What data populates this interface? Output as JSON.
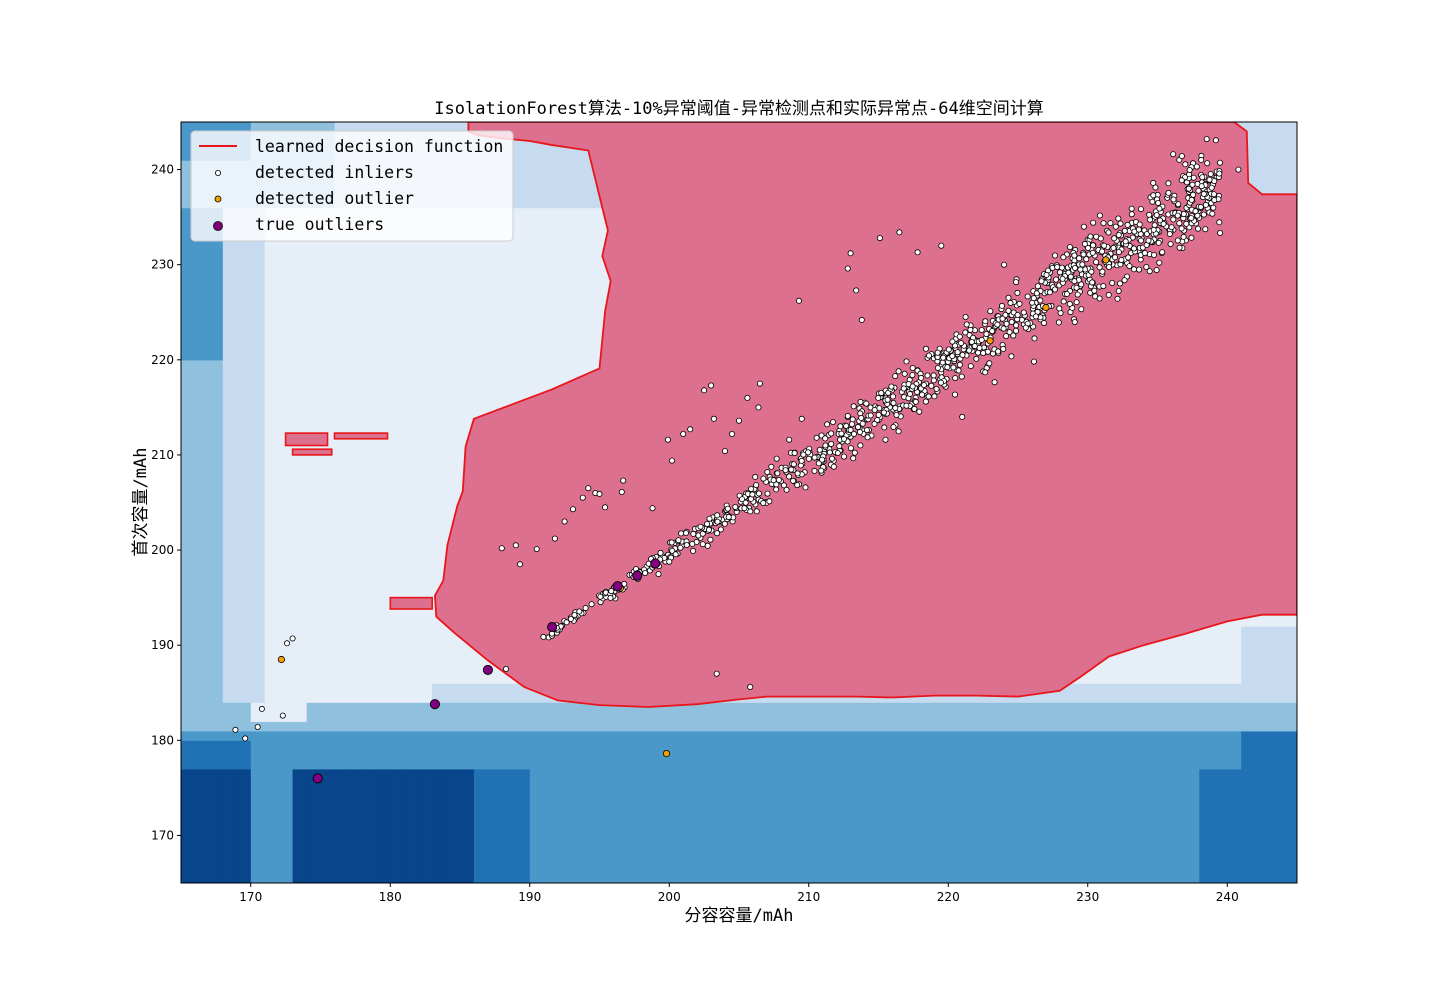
{
  "chart_data": {
    "type": "scatter",
    "title": "IsolationForest算法-10%异常阈值-异常检测点和实际异常点-64维空间计算",
    "xlabel": "分容容量/mAh",
    "ylabel": "首次容量/mAh",
    "xlim": [
      165,
      245
    ],
    "ylim": [
      165,
      245
    ],
    "xticks": [
      170,
      180,
      190,
      200,
      210,
      220,
      230,
      240
    ],
    "yticks": [
      170,
      180,
      190,
      200,
      210,
      220,
      230,
      240
    ],
    "legend_position": "upper-left",
    "colors": {
      "decision_line": "#e8161a",
      "inlier_region": "#dd6f8f",
      "inlier_face": "#ffffff",
      "outlier_face": "#f5a000",
      "true_outlier_face": "#800080",
      "background_levels": [
        "#08458a",
        "#2171b5",
        "#4a97c9",
        "#8fc1de",
        "#c6dbef",
        "#e6eef8"
      ]
    },
    "legend": [
      {
        "label": "learned decision function",
        "marker": "line",
        "color": "#e8161a"
      },
      {
        "label": "detected inliers",
        "marker": "small-circle",
        "color": "#ffffff"
      },
      {
        "label": "detected outlier",
        "marker": "small-circle",
        "color": "#f5a000"
      },
      {
        "label": "true outliers",
        "marker": "large-circle",
        "color": "#800080"
      }
    ],
    "decision_boundary": [
      [
        185.6,
        245.0
      ],
      [
        185.6,
        244.0
      ],
      [
        186.3,
        243.6
      ],
      [
        187.3,
        243.4
      ],
      [
        188.6,
        243.2
      ],
      [
        190.0,
        243.0
      ],
      [
        191.5,
        242.6
      ],
      [
        194.2,
        242.0
      ],
      [
        194.8,
        238.4
      ],
      [
        195.6,
        233.6
      ],
      [
        195.2,
        230.9
      ],
      [
        195.8,
        228.3
      ],
      [
        195.4,
        225.1
      ],
      [
        195.2,
        222.1
      ],
      [
        195.0,
        219.1
      ],
      [
        191.6,
        216.9
      ],
      [
        186.0,
        213.8
      ],
      [
        185.4,
        210.9
      ],
      [
        185.2,
        206.2
      ],
      [
        184.8,
        204.6
      ],
      [
        184.1,
        200.5
      ],
      [
        183.8,
        196.8
      ],
      [
        183.2,
        195.2
      ],
      [
        183.3,
        193.0
      ],
      [
        184.6,
        191.3
      ],
      [
        187.0,
        188.4
      ],
      [
        189.6,
        185.6
      ],
      [
        192.0,
        184.2
      ],
      [
        195.0,
        183.7
      ],
      [
        198.5,
        183.5
      ],
      [
        202.0,
        183.8
      ],
      [
        205.0,
        184.3
      ],
      [
        207.0,
        184.6
      ],
      [
        210.0,
        184.6
      ],
      [
        213.5,
        184.6
      ],
      [
        216.0,
        184.5
      ],
      [
        219.0,
        184.7
      ],
      [
        222.0,
        184.7
      ],
      [
        225.0,
        184.6
      ],
      [
        228.0,
        185.2
      ],
      [
        229.5,
        186.7
      ],
      [
        231.5,
        188.8
      ],
      [
        234.0,
        190.0
      ],
      [
        237.0,
        191.2
      ],
      [
        240.0,
        192.5
      ],
      [
        242.5,
        193.2
      ],
      [
        245.0,
        193.2
      ],
      [
        245.0,
        237.4
      ],
      [
        242.5,
        237.4
      ],
      [
        241.5,
        238.6
      ],
      [
        241.4,
        244.0
      ],
      [
        240.5,
        245.0
      ]
    ],
    "true_outliers": [
      {
        "x": 174.8,
        "y": 176.0
      },
      {
        "x": 183.2,
        "y": 183.8
      },
      {
        "x": 187.0,
        "y": 187.4
      },
      {
        "x": 191.6,
        "y": 191.9
      },
      {
        "x": 196.3,
        "y": 196.2
      },
      {
        "x": 197.7,
        "y": 197.3
      },
      {
        "x": 199.0,
        "y": 198.6
      }
    ],
    "detected_outliers": [
      {
        "x": 172.2,
        "y": 188.5
      },
      {
        "x": 199.8,
        "y": 178.6
      },
      {
        "x": 196.5,
        "y": 196.0
      },
      {
        "x": 223.0,
        "y": 222.0
      },
      {
        "x": 227.0,
        "y": 225.5
      },
      {
        "x": 231.3,
        "y": 230.5
      }
    ],
    "inliers": {
      "main_band": {
        "x_start": 190.5,
        "x_end": 239.5,
        "count": 1100
      },
      "isolated": [
        {
          "x": 168.9,
          "y": 181.1
        },
        {
          "x": 169.6,
          "y": 180.2
        },
        {
          "x": 170.5,
          "y": 181.4
        },
        {
          "x": 170.8,
          "y": 183.3
        },
        {
          "x": 172.3,
          "y": 182.6
        },
        {
          "x": 172.6,
          "y": 190.2
        },
        {
          "x": 173.0,
          "y": 190.7
        },
        {
          "x": 188.3,
          "y": 187.5
        },
        {
          "x": 203.4,
          "y": 187.0
        },
        {
          "x": 205.8,
          "y": 185.6
        },
        {
          "x": 216.5,
          "y": 233.4
        },
        {
          "x": 217.8,
          "y": 231.3
        },
        {
          "x": 219.5,
          "y": 232.0
        },
        {
          "x": 224.0,
          "y": 230.0
        },
        {
          "x": 221.0,
          "y": 214.0
        },
        {
          "x": 240.8,
          "y": 240.0
        },
        {
          "x": 188.0,
          "y": 200.2
        },
        {
          "x": 189.0,
          "y": 200.5
        },
        {
          "x": 189.3,
          "y": 198.5
        },
        {
          "x": 190.5,
          "y": 200.1
        },
        {
          "x": 191.8,
          "y": 201.2
        },
        {
          "x": 192.5,
          "y": 203.0
        },
        {
          "x": 193.1,
          "y": 204.3
        },
        {
          "x": 193.8,
          "y": 205.5
        },
        {
          "x": 194.2,
          "y": 206.5
        },
        {
          "x": 194.7,
          "y": 206.0
        },
        {
          "x": 195.0,
          "y": 205.9
        },
        {
          "x": 195.4,
          "y": 204.5
        },
        {
          "x": 196.6,
          "y": 206.1
        },
        {
          "x": 196.7,
          "y": 207.3
        },
        {
          "x": 198.8,
          "y": 204.4
        },
        {
          "x": 199.9,
          "y": 211.6
        },
        {
          "x": 200.2,
          "y": 209.4
        },
        {
          "x": 201.0,
          "y": 212.2
        },
        {
          "x": 201.5,
          "y": 212.7
        },
        {
          "x": 202.5,
          "y": 216.8
        },
        {
          "x": 203.0,
          "y": 217.3
        },
        {
          "x": 203.2,
          "y": 213.8
        },
        {
          "x": 204.0,
          "y": 210.4
        },
        {
          "x": 204.5,
          "y": 212.2
        },
        {
          "x": 205.0,
          "y": 213.6
        },
        {
          "x": 205.6,
          "y": 216.0
        },
        {
          "x": 206.5,
          "y": 217.5
        },
        {
          "x": 206.4,
          "y": 215.0
        },
        {
          "x": 207.7,
          "y": 209.6
        },
        {
          "x": 208.6,
          "y": 211.6
        },
        {
          "x": 209.5,
          "y": 213.8
        },
        {
          "x": 213.0,
          "y": 231.2
        },
        {
          "x": 213.4,
          "y": 227.3
        },
        {
          "x": 213.8,
          "y": 224.2
        },
        {
          "x": 212.8,
          "y": 229.6
        },
        {
          "x": 209.3,
          "y": 226.2
        },
        {
          "x": 215.1,
          "y": 232.8
        },
        {
          "x": 215.5,
          "y": 211.6
        },
        {
          "x": 213.7,
          "y": 211.0
        }
      ]
    }
  }
}
